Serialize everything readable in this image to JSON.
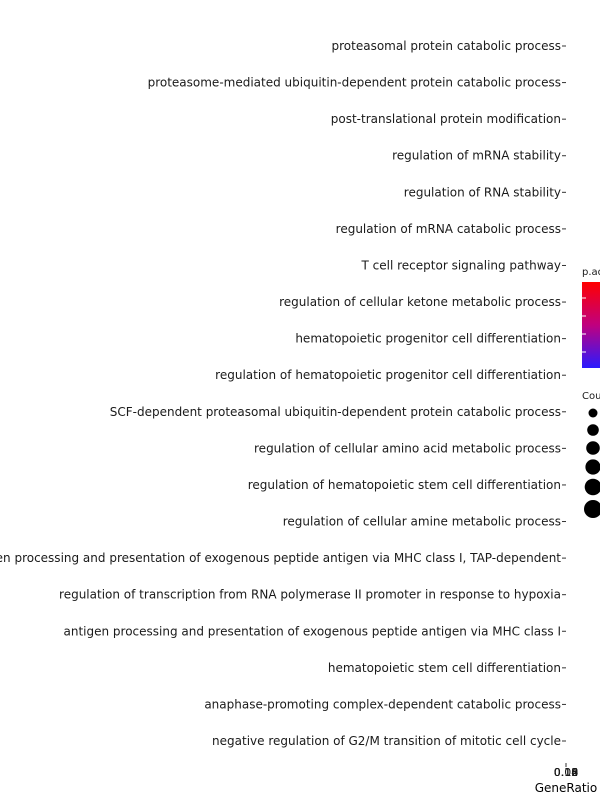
{
  "chart_data": {
    "type": "scatter",
    "title": "",
    "xlabel": "GeneRatio",
    "ylabel": "",
    "categories": [
      "negative regulation of G2/M transition of mitotic cell cycle",
      "anaphase-promoting complex-dependent catabolic process",
      "hematopoietic stem cell differentiation",
      "antigen processing and presentation of exogenous peptide antigen via MHC class I",
      "regulation of transcription from RNA polymerase II promoter in response to hypoxia",
      "antigen processing and presentation of exogenous peptide antigen via MHC class I, TAP-dependent",
      "regulation of cellular amine metabolic process",
      "regulation of hematopoietic stem cell differentiation",
      "regulation of cellular amino acid metabolic process",
      "SCF-dependent proteasomal ubiquitin-dependent protein catabolic process",
      "regulation of hematopoietic progenitor cell differentiation",
      "hematopoietic progenitor cell differentiation",
      "regulation of cellular ketone metabolic process",
      "T cell receptor signaling pathway",
      "regulation of mRNA catabolic process",
      "regulation of RNA stability",
      "regulation of mRNA stability",
      "post-translational protein modification",
      "proteasome-mediated ubiquitin-dependent protein catabolic process",
      "proteasomal protein catabolic process"
    ],
    "x_tick_labels": [
      "0.08",
      "0.10",
      "0.12",
      "0.14",
      "0.16",
      "0.18"
    ],
    "legend": {
      "color_title": "p.adjust",
      "size_title": "Count",
      "color_low": "#ff0000",
      "color_high": "#0000ff",
      "placement": "right"
    },
    "grid": false
  }
}
